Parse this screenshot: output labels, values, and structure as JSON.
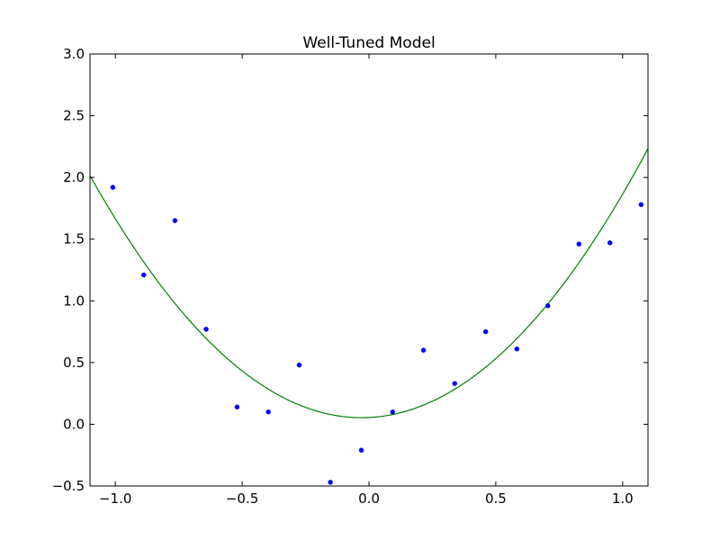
{
  "chart_data": {
    "type": "scatter",
    "title": "Well-Tuned Model",
    "xlabel": "",
    "ylabel": "",
    "xlim": [
      -1.1,
      1.1
    ],
    "ylim": [
      -0.5,
      3.0
    ],
    "grid": false,
    "x_ticks": [
      {
        "value": -1.0,
        "label": "−1.0"
      },
      {
        "value": -0.5,
        "label": "−0.5"
      },
      {
        "value": 0.0,
        "label": "0.0"
      },
      {
        "value": 0.5,
        "label": "0.5"
      },
      {
        "value": 1.0,
        "label": "1.0"
      }
    ],
    "y_ticks": [
      {
        "value": -0.5,
        "label": "−0.5"
      },
      {
        "value": 0.0,
        "label": "0.0"
      },
      {
        "value": 0.5,
        "label": "0.5"
      },
      {
        "value": 1.0,
        "label": "1.0"
      },
      {
        "value": 1.5,
        "label": "1.5"
      },
      {
        "value": 2.0,
        "label": "2.0"
      },
      {
        "value": 2.5,
        "label": "2.5"
      },
      {
        "value": 3.0,
        "label": "3.0"
      }
    ],
    "series": [
      {
        "kind": "scatter",
        "color": "#0000ff",
        "x": [
          -1.01,
          -0.888,
          -0.765,
          -0.642,
          -0.52,
          -0.397,
          -0.275,
          -0.152,
          -0.03,
          0.093,
          0.215,
          0.338,
          0.46,
          0.583,
          0.705,
          0.828,
          0.95,
          1.073
        ],
        "y": [
          1.92,
          1.21,
          1.65,
          0.77,
          0.14,
          0.1,
          0.48,
          -0.47,
          -0.21,
          0.1,
          0.6,
          0.33,
          0.75,
          0.61,
          0.96,
          1.46,
          1.47,
          1.78
        ]
      },
      {
        "kind": "line",
        "color": "#008000",
        "model": "quadratic fit",
        "coefficients": {
          "a": 1.71,
          "b": 0.1,
          "c": 0.055
        }
      }
    ]
  }
}
